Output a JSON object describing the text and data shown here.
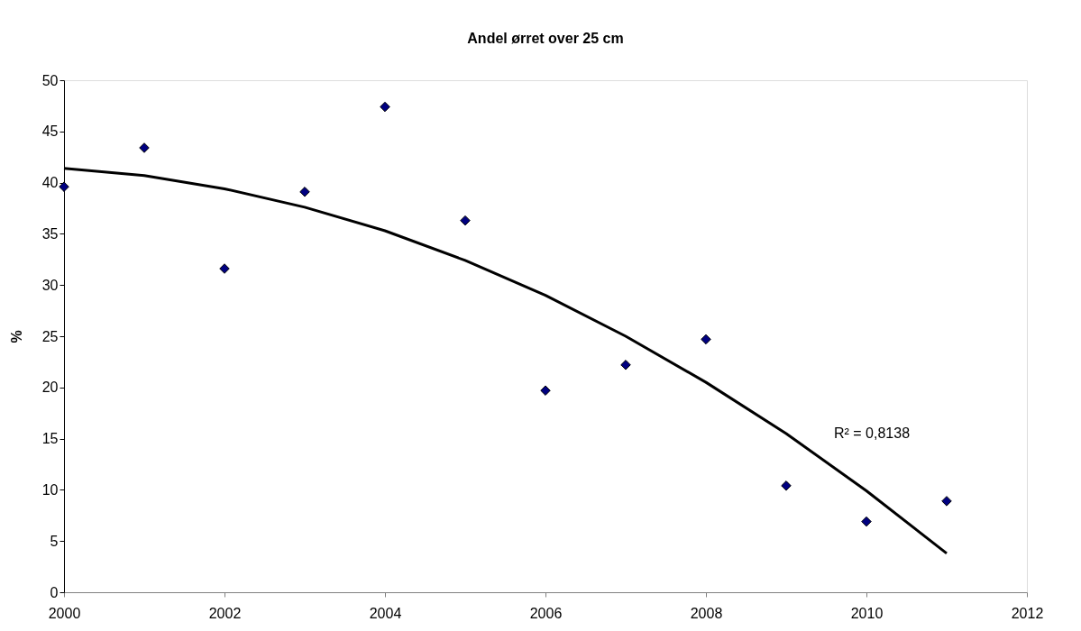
{
  "chart_data": {
    "type": "scatter",
    "title": "Andel ørret over 25 cm",
    "ylabel": "%",
    "x": [
      2000,
      2001,
      2002,
      2003,
      2004,
      2005,
      2006,
      2007,
      2008,
      2009,
      2010,
      2011
    ],
    "series": [
      {
        "color": "#000080",
        "marker": "diamond",
        "values": [
          39.6,
          43.4,
          31.6,
          39.1,
          47.4,
          36.3,
          19.7,
          22.2,
          24.7,
          10.4,
          6.9,
          8.9
        ]
      },
      {
        "type": "line",
        "color": "#000000",
        "line_style": "solid",
        "x": [
          2000,
          2001,
          2002,
          2003,
          2004,
          2005,
          2006,
          2007,
          2008,
          2009,
          2010,
          2011
        ],
        "values": [
          41.4,
          40.7,
          39.4,
          37.6,
          35.3,
          32.4,
          29.0,
          25.0,
          20.5,
          15.5,
          9.9,
          3.8
        ]
      }
    ],
    "annotations": [
      "R² = 0,8138"
    ],
    "xlim": [
      2000,
      2012
    ],
    "xticks": [
      2000,
      2002,
      2004,
      2006,
      2008,
      2010,
      2012
    ],
    "ylim": [
      0,
      50
    ],
    "yticks": [
      0,
      5,
      10,
      15,
      20,
      25,
      30,
      35,
      40,
      45,
      50
    ],
    "grid": false
  }
}
